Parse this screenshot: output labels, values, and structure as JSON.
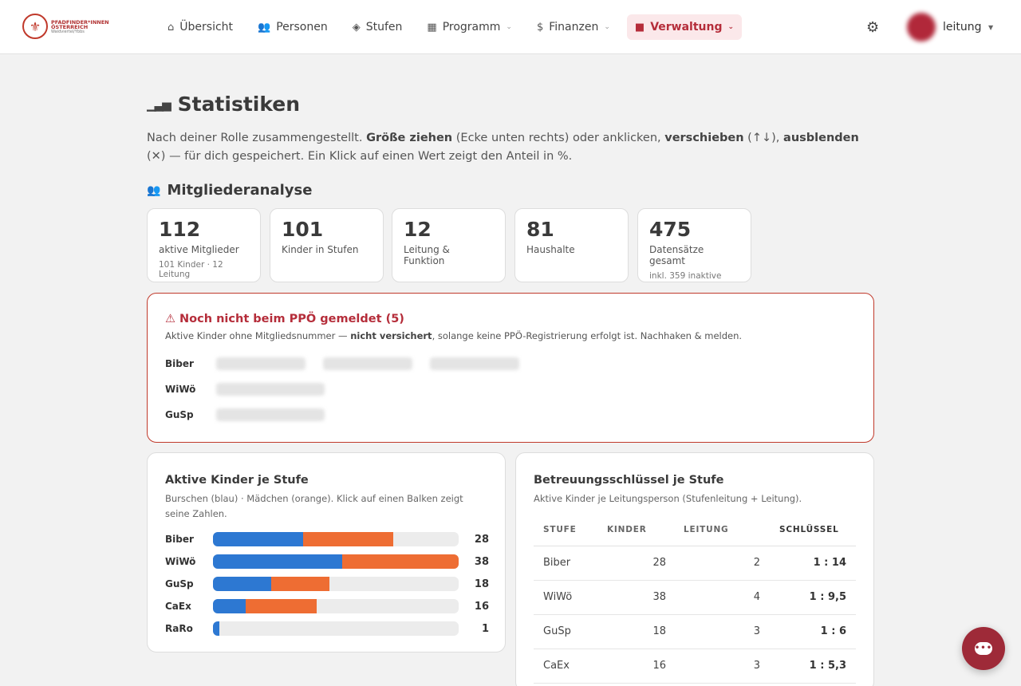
{
  "brand": {
    "logo_line1": "PFADFINDER*INNEN",
    "logo_line2": "ÖSTERREICH",
    "logo_line3": "Waldviertel/Ybbs",
    "accent_color": "#b52d3a"
  },
  "nav": {
    "items": [
      {
        "label": "Übersicht",
        "icon": "home-icon"
      },
      {
        "label": "Personen",
        "icon": "people-icon"
      },
      {
        "label": "Stufen",
        "icon": "layers-icon"
      },
      {
        "label": "Programm",
        "icon": "calendar-icon",
        "dropdown": true
      },
      {
        "label": "Finanzen",
        "icon": "dollar-icon",
        "dropdown": true
      },
      {
        "label": "Verwaltung",
        "icon": "briefcase-icon",
        "dropdown": true,
        "active": true
      }
    ],
    "settings_icon": "gear-icon",
    "user_name": "leitung"
  },
  "page": {
    "title": "Statistiken",
    "intro_1": "Nach deiner Rolle zusammengestellt. ",
    "intro_b1": "Größe ziehen",
    "intro_2": " (Ecke unten rechts) oder anklicken, ",
    "intro_b2": "verschieben",
    "intro_3": " (↑↓), ",
    "intro_b3": "ausblenden",
    "intro_4": " (✕) — für dich gespeichert. Ein Klick auf einen Wert zeigt den Anteil in %."
  },
  "member_analysis": {
    "title": "Mitgliederanalyse",
    "kpis": [
      {
        "value": "112",
        "label": "aktive Mitglieder",
        "sub": "101 Kinder · 12 Leitung"
      },
      {
        "value": "101",
        "label": "Kinder in Stufen",
        "sub": ""
      },
      {
        "value": "12",
        "label": "Leitung & Funktion",
        "sub": ""
      },
      {
        "value": "81",
        "label": "Haushalte",
        "sub": ""
      },
      {
        "value": "475",
        "label": "Datensätze gesamt",
        "sub": "inkl. 359 inaktive"
      }
    ]
  },
  "alert": {
    "title": "⚠ Noch nicht beim PPÖ gemeldet (5)",
    "desc_1": "Aktive Kinder ohne Mitgliedsnummer — ",
    "desc_b": "nicht versichert",
    "desc_2": ", solange keine PPÖ-Registrierung erfolgt ist. Nachhaken & melden.",
    "rows": [
      {
        "label": "Biber"
      },
      {
        "label": "WiWö"
      },
      {
        "label": "GuSp"
      }
    ]
  },
  "children_chart": {
    "title": "Aktive Kinder je Stufe",
    "subtitle": "Burschen (blau) · Mädchen (orange). Klick auf einen Balken zeigt seine Zahlen.",
    "colors": {
      "boys": "#2d78d2",
      "girls": "#ee6d33",
      "track": "#ececec"
    }
  },
  "chart_data": {
    "type": "bar",
    "orientation": "horizontal",
    "stacked": true,
    "title": "Aktive Kinder je Stufe",
    "categories": [
      "Biber",
      "WiWö",
      "GuSp",
      "CaEx",
      "RaRo"
    ],
    "series": [
      {
        "name": "Burschen",
        "values": [
          14,
          20,
          9,
          5,
          1
        ]
      },
      {
        "name": "Mädchen",
        "values": [
          14,
          18,
          9,
          11,
          0
        ]
      }
    ],
    "totals": [
      28,
      38,
      18,
      16,
      1
    ],
    "xlim": [
      0,
      38
    ]
  },
  "ratio_table": {
    "title": "Betreuungsschlüssel je Stufe",
    "subtitle": "Aktive Kinder je Leitungsperson (Stufenleitung + Leitung).",
    "headers": [
      "STUFE",
      "KINDER",
      "LEITUNG",
      "SCHLÜSSEL"
    ],
    "rows": [
      {
        "stufe": "Biber",
        "kinder": "28",
        "leitung": "2",
        "schluessel": "1 : 14"
      },
      {
        "stufe": "WiWö",
        "kinder": "38",
        "leitung": "4",
        "schluessel": "1 : 9,5"
      },
      {
        "stufe": "GuSp",
        "kinder": "18",
        "leitung": "3",
        "schluessel": "1 : 6"
      },
      {
        "stufe": "CaEx",
        "kinder": "16",
        "leitung": "3",
        "schluessel": "1 : 5,3"
      }
    ]
  },
  "chat": {
    "icon": "chat-icon",
    "glyph": "•••"
  }
}
